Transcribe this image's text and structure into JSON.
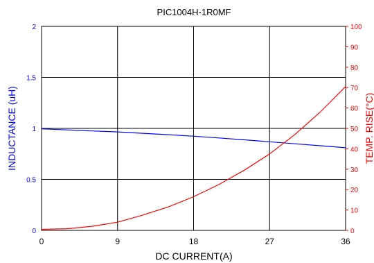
{
  "chart_data": {
    "type": "line",
    "title": "PIC1004H-1R0MF",
    "xlabel": "DC CURRENT(A)",
    "ylabel_left": "INDUCTANCE (uH)",
    "ylabel_right": "TEMP. RISE(°C)",
    "xlim": [
      0,
      36
    ],
    "ylim_left": [
      0,
      2
    ],
    "ylim_right": [
      0,
      100
    ],
    "x_ticks": [
      "0",
      "9",
      "18",
      "27",
      "36"
    ],
    "y_left_ticks": [
      "0",
      "0.5",
      "1",
      "1.5",
      "2"
    ],
    "y_right_ticks": [
      "0",
      "10",
      "20",
      "30",
      "40",
      "50",
      "60",
      "70",
      "80",
      "90",
      "100"
    ],
    "grid": true,
    "colors": {
      "left_axis": "#0000ff",
      "right_axis": "#ff0000",
      "title": "#000000"
    },
    "series": [
      {
        "axis": "left",
        "color": "#0000ff",
        "x": [
          0,
          3,
          6,
          9,
          12,
          15,
          18,
          21,
          24,
          27,
          30,
          33,
          36
        ],
        "y": [
          0.995,
          0.985,
          0.975,
          0.965,
          0.952,
          0.938,
          0.923,
          0.906,
          0.888,
          0.869,
          0.849,
          0.83,
          0.81
        ]
      },
      {
        "axis": "right",
        "color": "#ff0000",
        "x": [
          0,
          3,
          6,
          9,
          12,
          15,
          18,
          21,
          24,
          27,
          30,
          33,
          36
        ],
        "y": [
          0.5,
          0.8,
          2.0,
          4.0,
          7.5,
          11.5,
          16.5,
          22.5,
          29.5,
          37.5,
          47.0,
          58.0,
          70.5
        ]
      }
    ]
  }
}
